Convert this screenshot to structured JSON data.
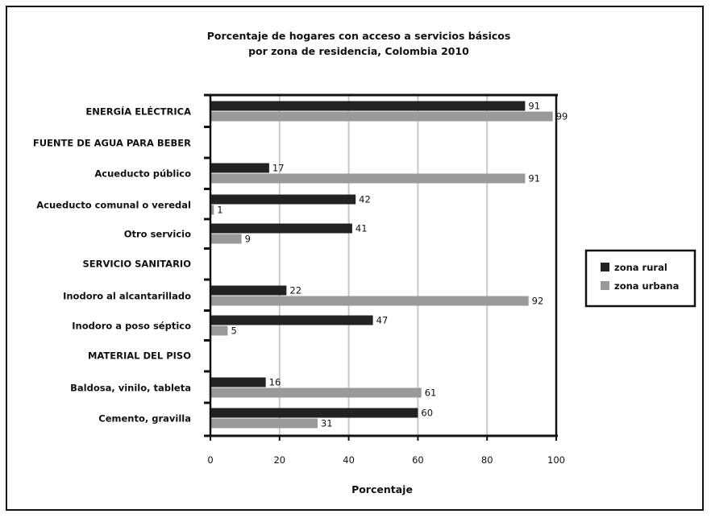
{
  "chart_data": {
    "type": "bar",
    "title_lines": [
      "Porcentaje de hogares con acceso a servicios básicos",
      "por zona de residencia, Colombia 2010"
    ],
    "xlabel": "Porcentaje",
    "ylabel": "",
    "xlim": [
      0,
      100
    ],
    "xticks": [
      0,
      20,
      40,
      60,
      80,
      100
    ],
    "grid": true,
    "orientation": "horizontal",
    "legend_position": "right",
    "categories": [
      "ENERGÍA ELÉCTRICA",
      "FUENTE DE AGUA PARA BEBER",
      "Acueducto público",
      "Acueducto comunal o veredal",
      "Otro servicio",
      "SERVICIO SANITARIO",
      "Inodoro al alcantarillado",
      "Inodoro a poso séptico",
      "MATERIAL DEL PISO",
      "Baldosa, vinilo, tableta",
      "Cemento, gravilla"
    ],
    "series": [
      {
        "name": "zona rural",
        "color": "#222222",
        "values": [
          91,
          null,
          17,
          42,
          41,
          null,
          22,
          47,
          null,
          16,
          60
        ]
      },
      {
        "name": "zona urbana",
        "color": "#999999",
        "values": [
          99,
          null,
          91,
          1,
          9,
          null,
          92,
          5,
          null,
          61,
          31
        ]
      }
    ]
  }
}
